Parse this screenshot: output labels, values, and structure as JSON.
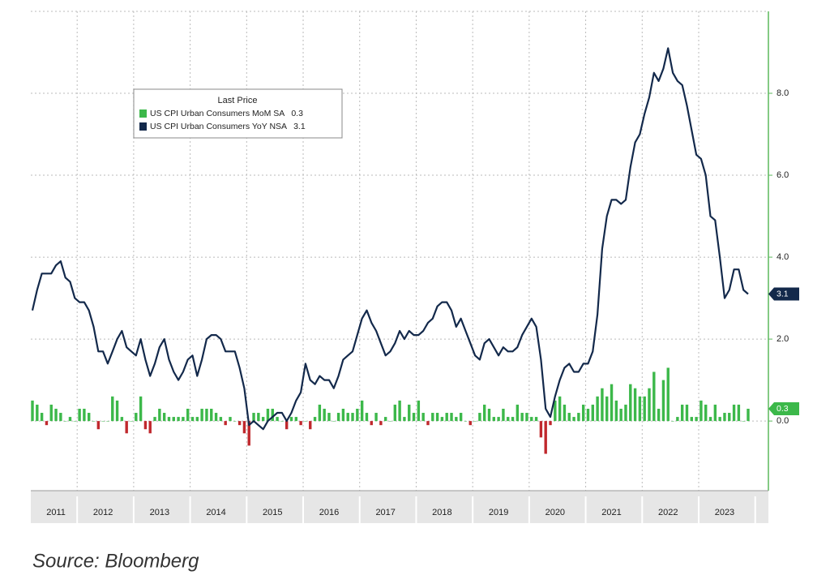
{
  "chart_data": {
    "type": "bar",
    "legend_title": "Last Price",
    "source": "Source: Bloomberg",
    "categories": [
      null,
      null,
      null,
      null,
      null,
      "2011",
      null,
      null,
      null,
      null,
      null,
      null,
      null,
      null,
      null,
      "2012",
      null,
      null,
      null,
      null,
      null,
      null,
      null,
      null,
      null,
      null,
      null,
      "2013",
      null,
      null,
      null,
      null,
      null,
      null,
      null,
      null,
      null,
      null,
      null,
      "2014",
      null,
      null,
      null,
      null,
      null,
      null,
      null,
      null,
      null,
      null,
      null,
      "2015",
      null,
      null,
      null,
      null,
      null,
      null,
      null,
      null,
      null,
      null,
      null,
      "2016",
      null,
      null,
      null,
      null,
      null,
      null,
      null,
      null,
      null,
      null,
      null,
      "2017",
      null,
      null,
      null,
      null,
      null,
      null,
      null,
      null,
      null,
      null,
      null,
      "2018",
      null,
      null,
      null,
      null,
      null,
      null,
      null,
      null,
      null,
      null,
      null,
      "2019",
      null,
      null,
      null,
      null,
      null,
      null,
      null,
      null,
      null,
      null,
      null,
      "2020",
      null,
      null,
      null,
      null,
      null,
      null,
      null,
      null,
      null,
      null,
      null,
      "2021",
      null,
      null,
      null,
      null,
      null,
      null,
      null,
      null,
      null,
      null,
      null,
      "2022",
      null,
      null,
      null,
      null,
      null,
      null,
      null,
      null,
      null,
      null,
      null,
      "2023",
      null,
      null,
      null,
      null,
      null
    ],
    "series": [
      {
        "name": "US CPI Urban Consumers MoM SA",
        "type": "bar",
        "color": "#3cb84a",
        "negative_color": "#c0282d",
        "values": [
          0.5,
          0.4,
          0.2,
          -0.1,
          0.4,
          0.3,
          0.2,
          0.0,
          0.1,
          0.0,
          0.3,
          0.3,
          0.2,
          0.0,
          -0.2,
          0.0,
          0.0,
          0.6,
          0.5,
          0.1,
          -0.3,
          0.0,
          0.2,
          0.6,
          -0.2,
          -0.3,
          0.1,
          0.3,
          0.2,
          0.1,
          0.1,
          0.1,
          0.1,
          0.3,
          0.1,
          0.1,
          0.3,
          0.3,
          0.3,
          0.2,
          0.1,
          -0.1,
          0.1,
          0.0,
          -0.1,
          -0.3,
          -0.6,
          0.2,
          0.2,
          0.1,
          0.3,
          0.3,
          0.1,
          0.0,
          -0.2,
          0.1,
          0.1,
          -0.1,
          0.0,
          -0.2,
          0.1,
          0.4,
          0.3,
          0.2,
          0.0,
          0.2,
          0.3,
          0.2,
          0.2,
          0.3,
          0.5,
          0.2,
          -0.1,
          0.2,
          -0.1,
          0.1,
          0.0,
          0.4,
          0.5,
          0.1,
          0.4,
          0.2,
          0.5,
          0.2,
          -0.1,
          0.2,
          0.2,
          0.1,
          0.2,
          0.2,
          0.1,
          0.2,
          0.0,
          -0.1,
          0.0,
          0.2,
          0.4,
          0.3,
          0.1,
          0.1,
          0.3,
          0.1,
          0.1,
          0.4,
          0.2,
          0.2,
          0.1,
          0.1,
          -0.4,
          -0.8,
          -0.1,
          0.5,
          0.6,
          0.4,
          0.2,
          0.1,
          0.2,
          0.4,
          0.3,
          0.4,
          0.6,
          0.8,
          0.6,
          0.9,
          0.5,
          0.3,
          0.4,
          0.9,
          0.8,
          0.6,
          0.6,
          0.8,
          1.2,
          0.3,
          1.0,
          1.3,
          0.0,
          0.1,
          0.4,
          0.4,
          0.1,
          0.1,
          0.5,
          0.4,
          0.1,
          0.4,
          0.1,
          0.2,
          0.2,
          0.4,
          0.4,
          0.0,
          0.3
        ]
      },
      {
        "name": "US CPI Urban Consumers YoY NSA",
        "type": "line",
        "color": "#13294b",
        "values": [
          2.7,
          3.2,
          3.6,
          3.6,
          3.6,
          3.8,
          3.9,
          3.5,
          3.4,
          3.0,
          2.9,
          2.9,
          2.7,
          2.3,
          1.7,
          1.7,
          1.4,
          1.7,
          2.0,
          2.2,
          1.8,
          1.7,
          1.6,
          2.0,
          1.5,
          1.1,
          1.4,
          1.8,
          2.0,
          1.5,
          1.2,
          1.0,
          1.2,
          1.5,
          1.6,
          1.1,
          1.5,
          2.0,
          2.1,
          2.1,
          2.0,
          1.7,
          1.7,
          1.7,
          1.3,
          0.8,
          -0.1,
          0.0,
          -0.1,
          -0.2,
          0.0,
          0.1,
          0.2,
          0.2,
          0.0,
          0.2,
          0.5,
          0.7,
          1.4,
          1.0,
          0.9,
          1.1,
          1.0,
          1.0,
          0.8,
          1.1,
          1.5,
          1.6,
          1.7,
          2.1,
          2.5,
          2.7,
          2.4,
          2.2,
          1.9,
          1.6,
          1.7,
          1.9,
          2.2,
          2.0,
          2.2,
          2.1,
          2.1,
          2.2,
          2.4,
          2.5,
          2.8,
          2.9,
          2.9,
          2.7,
          2.3,
          2.5,
          2.2,
          1.9,
          1.6,
          1.5,
          1.9,
          2.0,
          1.8,
          1.6,
          1.8,
          1.7,
          1.7,
          1.8,
          2.1,
          2.3,
          2.5,
          2.3,
          1.5,
          0.3,
          0.1,
          0.6,
          1.0,
          1.3,
          1.4,
          1.2,
          1.2,
          1.4,
          1.4,
          1.7,
          2.6,
          4.2,
          5.0,
          5.4,
          5.4,
          5.3,
          5.4,
          6.2,
          6.8,
          7.0,
          7.5,
          7.9,
          8.5,
          8.3,
          8.6,
          9.1,
          8.5,
          8.3,
          8.2,
          7.7,
          7.1,
          6.5,
          6.4,
          6.0,
          5.0,
          4.9,
          4.0,
          3.0,
          3.2,
          3.7,
          3.7,
          3.2,
          3.1
        ]
      }
    ],
    "ylim": [
      -1.7,
      10
    ],
    "yticks": [
      {
        "value": 0,
        "label": "0.0"
      },
      {
        "value": 2,
        "label": "2.0"
      },
      {
        "value": 4,
        "label": "4.0"
      },
      {
        "value": 6,
        "label": "6.0"
      },
      {
        "value": 8,
        "label": "8.0"
      }
    ],
    "grid": true,
    "axis_color": "#5cb85c"
  }
}
